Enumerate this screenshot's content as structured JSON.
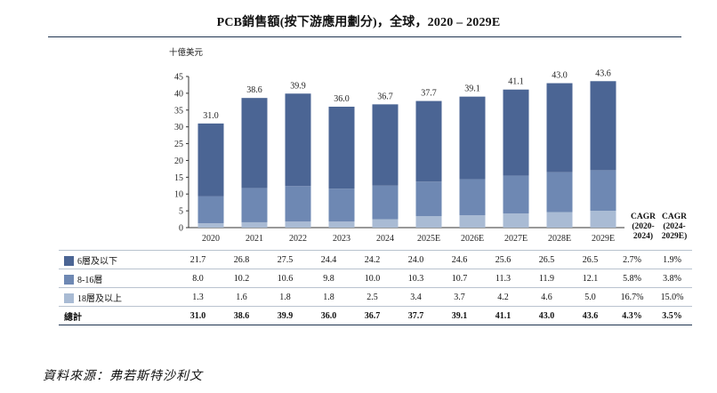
{
  "title": "PCB銷售額(按下游應用劃分)，全球，2020 – 2029E",
  "source": "資料來源：弗若斯特沙利文",
  "chart_data": {
    "type": "bar",
    "stacked": true,
    "unit_label": "十億美元",
    "categories": [
      "2020",
      "2021",
      "2022",
      "2023",
      "2024",
      "2025E",
      "2026E",
      "2027E",
      "2028E",
      "2029E"
    ],
    "ylim": [
      0,
      45
    ],
    "yticks": [
      0,
      5,
      10,
      15,
      20,
      25,
      30,
      35,
      40,
      45
    ],
    "series": [
      {
        "name": "18層及以上",
        "color": "#a9bbd4",
        "values": [
          1.3,
          1.6,
          1.8,
          1.8,
          2.5,
          3.4,
          3.7,
          4.2,
          4.6,
          5.0
        ],
        "cagr": [
          "16.7%",
          "15.0%"
        ]
      },
      {
        "name": "8-16層",
        "color": "#6e88b3",
        "values": [
          8.0,
          10.2,
          10.6,
          9.8,
          10.0,
          10.3,
          10.7,
          11.3,
          11.9,
          12.1
        ],
        "cagr": [
          "5.8%",
          "3.8%"
        ]
      },
      {
        "name": "6層及以下",
        "color": "#4b6594",
        "values": [
          21.7,
          26.8,
          27.5,
          24.4,
          24.2,
          24.0,
          24.6,
          25.6,
          26.5,
          26.5
        ],
        "cagr": [
          "2.7%",
          "1.9%"
        ]
      }
    ],
    "totals": {
      "name": "總計",
      "values": [
        31.0,
        38.6,
        39.9,
        36.0,
        36.7,
        37.7,
        39.1,
        41.1,
        43.0,
        43.6
      ],
      "cagr": [
        "4.3%",
        "3.5%"
      ]
    },
    "cagr_headers": [
      [
        "CAGR",
        "(2020-",
        "2024)"
      ],
      [
        "CAGR",
        "(2024-",
        "2029E)"
      ]
    ],
    "table_order": [
      2,
      1,
      0
    ]
  }
}
